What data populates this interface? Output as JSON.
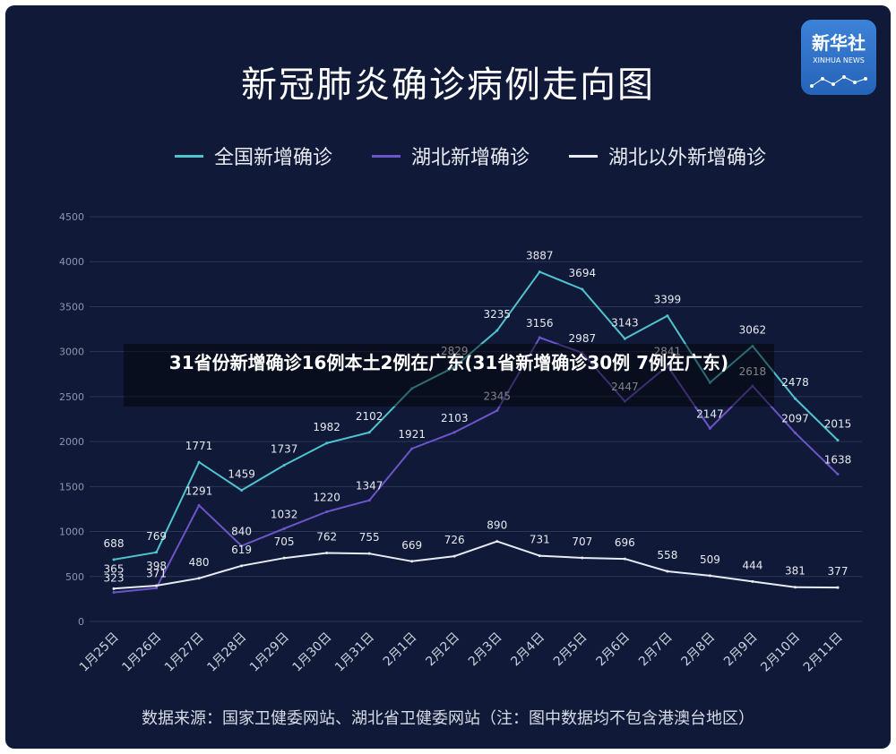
{
  "chart_data": {
    "type": "line",
    "title": "新冠肺炎确诊病例走向图",
    "categories": [
      "1月25日",
      "1月26日",
      "1月27日",
      "1月28日",
      "1月29日",
      "1月30日",
      "1月31日",
      "2月1日",
      "2月2日",
      "2月3日",
      "2月4日",
      "2月5日",
      "2月6日",
      "2月7日",
      "2月8日",
      "2月9日",
      "2月10日",
      "2月11日"
    ],
    "series": [
      {
        "name": "全国新增确诊",
        "color": "#4fc3cf",
        "values": [
          688,
          769,
          1771,
          1459,
          1737,
          1982,
          2102,
          2590,
          2829,
          3235,
          3887,
          3694,
          3143,
          3399,
          2656,
          3062,
          2478,
          2015
        ]
      },
      {
        "name": "湖北新增确诊",
        "color": "#6c55c9",
        "values": [
          323,
          371,
          1291,
          840,
          1032,
          1220,
          1347,
          1921,
          2103,
          2345,
          3156,
          2987,
          2447,
          2841,
          2147,
          2618,
          2097,
          1638
        ]
      },
      {
        "name": "湖北以外新增确诊",
        "color": "#e8ebf2",
        "values": [
          365,
          398,
          480,
          619,
          705,
          762,
          755,
          669,
          726,
          890,
          731,
          707,
          696,
          558,
          509,
          444,
          381,
          377
        ]
      }
    ],
    "labels": [
      [
        "688",
        "769",
        "1771",
        "1459",
        "1737",
        "1982",
        "2102",
        "",
        "2829",
        "3235",
        "3887",
        "3694",
        "3143",
        "3399",
        "",
        "3062",
        "2478",
        "2015"
      ],
      [
        "323",
        "371",
        "1291",
        "840",
        "1032",
        "1220",
        "1347",
        "1921",
        "2103",
        "2345",
        "3156",
        "2987",
        "2447",
        "2841",
        "2147",
        "2618",
        "2097",
        "1638"
      ],
      [
        "365",
        "398",
        "480",
        "619",
        "705",
        "762",
        "755",
        "669",
        "726",
        "890",
        "731",
        "707",
        "696",
        "558",
        "509",
        "444",
        "381",
        "377"
      ]
    ],
    "ylim": [
      0,
      4500
    ],
    "yticks": [
      "0",
      "500",
      "1000",
      "1500",
      "2000",
      "2500",
      "3000",
      "3500",
      "4000",
      "4500"
    ],
    "grid": true,
    "legend": "top"
  },
  "logo": {
    "cn": "新华社",
    "en": "XINHUA NEWS"
  },
  "overlay_text": "31省份新增确诊16例本土2例在广东(31省新增确诊30例 7例在广东)",
  "source_note": "数据来源：国家卫健委网站、湖北省卫健委网站（注：图中数据均不包含港澳台地区）"
}
